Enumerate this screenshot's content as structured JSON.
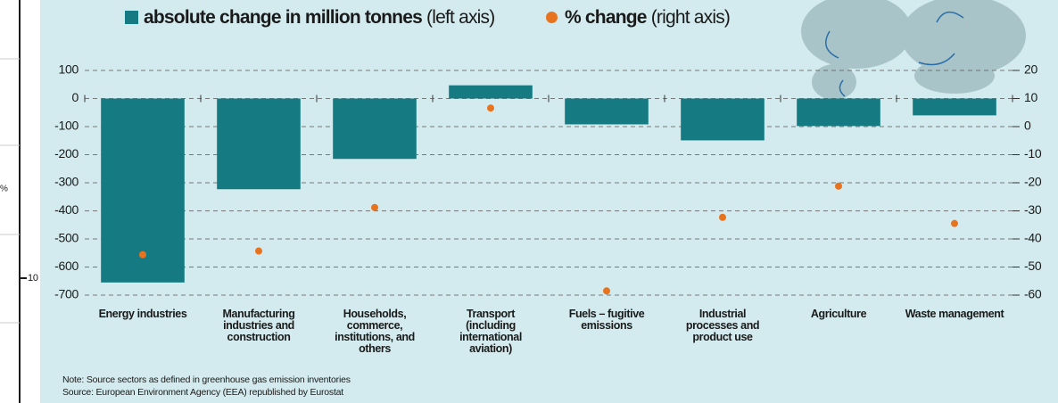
{
  "chart_data": {
    "type": "bar",
    "categories": [
      "Energy industries",
      "Manufacturing industries and construction",
      "Households, commerce, institutions, and others",
      "Transport (including international aviation)",
      "Fuels – fugitive emissions",
      "Industrial processes and product use",
      "Agriculture",
      "Waste management"
    ],
    "series": [
      {
        "name": "absolute change in million tonnes",
        "axis_note": "(left axis)",
        "color": "#157a82",
        "type": "bar",
        "values": [
          -655,
          -323,
          -215,
          47,
          -92,
          -149,
          -98,
          -60
        ]
      },
      {
        "name": "% change",
        "axis_note": "(right axis)",
        "color": "#e8731e",
        "type": "scatter",
        "axis": "y2",
        "values": [
          -45.6,
          -44.3,
          -28.8,
          6.6,
          -58.5,
          -32.3,
          -21.2,
          -34.5
        ]
      }
    ],
    "ylim": [
      -700,
      100
    ],
    "yticks": [
      100,
      0,
      -100,
      -200,
      -300,
      -400,
      -500,
      -600,
      -700
    ],
    "y2lim": [
      -60,
      20
    ],
    "y2ticks": [
      20,
      10,
      0,
      -10,
      -20,
      -30,
      -40,
      -50,
      -60
    ],
    "grid": true,
    "notes": [
      "Note: Source sectors as defined in greenhouse gas emission inventories",
      "Source: European Environment Agency (EEA) republished by Eurostat"
    ],
    "partial_panel": {
      "tick_label": "10",
      "label": "%"
    }
  }
}
